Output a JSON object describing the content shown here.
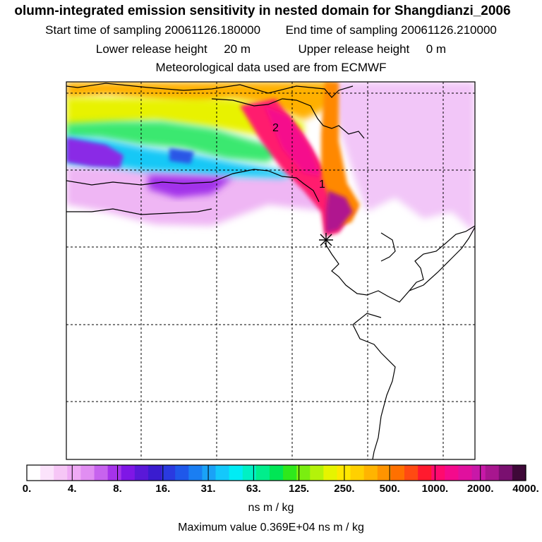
{
  "header": {
    "title": "olumn-integrated emission sensitivity in nested domain for Shangdianzi_2006",
    "start_label": "Start time of sampling 20061126.180000",
    "end_label": "End time of sampling 20061126.210000",
    "lower_label": "Lower release height",
    "lower_value": "20 m",
    "upper_label": "Upper release height",
    "upper_value": "0 m",
    "met_label": "Meteorological data used are from ECMWF"
  },
  "map": {
    "contour_labels": [
      "2",
      "1"
    ],
    "station_marker": "star-marker"
  },
  "colorbar": {
    "tick_labels": [
      "0.",
      "4.",
      "8.",
      "16.",
      "31.",
      "63.",
      "125.",
      "250.",
      "500.",
      "1000.",
      "2000.",
      "4000."
    ],
    "colors": [
      "#ffffff",
      "#fbe3fb",
      "#f6c6f6",
      "#efaaf5",
      "#e18ef2",
      "#c763ee",
      "#a633ea",
      "#7f16e6",
      "#5a18d8",
      "#3a1ccf",
      "#2a3ae0",
      "#1f58ea",
      "#1a7ef2",
      "#1aa2f7",
      "#14c8fb",
      "#00ecf5",
      "#00f0c4",
      "#00ee8c",
      "#00e655",
      "#2fe81c",
      "#7aee10",
      "#b4f20a",
      "#e6f400",
      "#ffe800",
      "#ffd000",
      "#ffb400",
      "#ff9400",
      "#ff7000",
      "#ff4a12",
      "#ff1a2e",
      "#ff0a6e",
      "#f40a8c",
      "#e0109e",
      "#c818a8",
      "#a8168f",
      "#7a1070",
      "#3e0838"
    ],
    "units": "ns m / kg",
    "max_label": "Maximum value  0.369E+04 ns m / kg"
  }
}
